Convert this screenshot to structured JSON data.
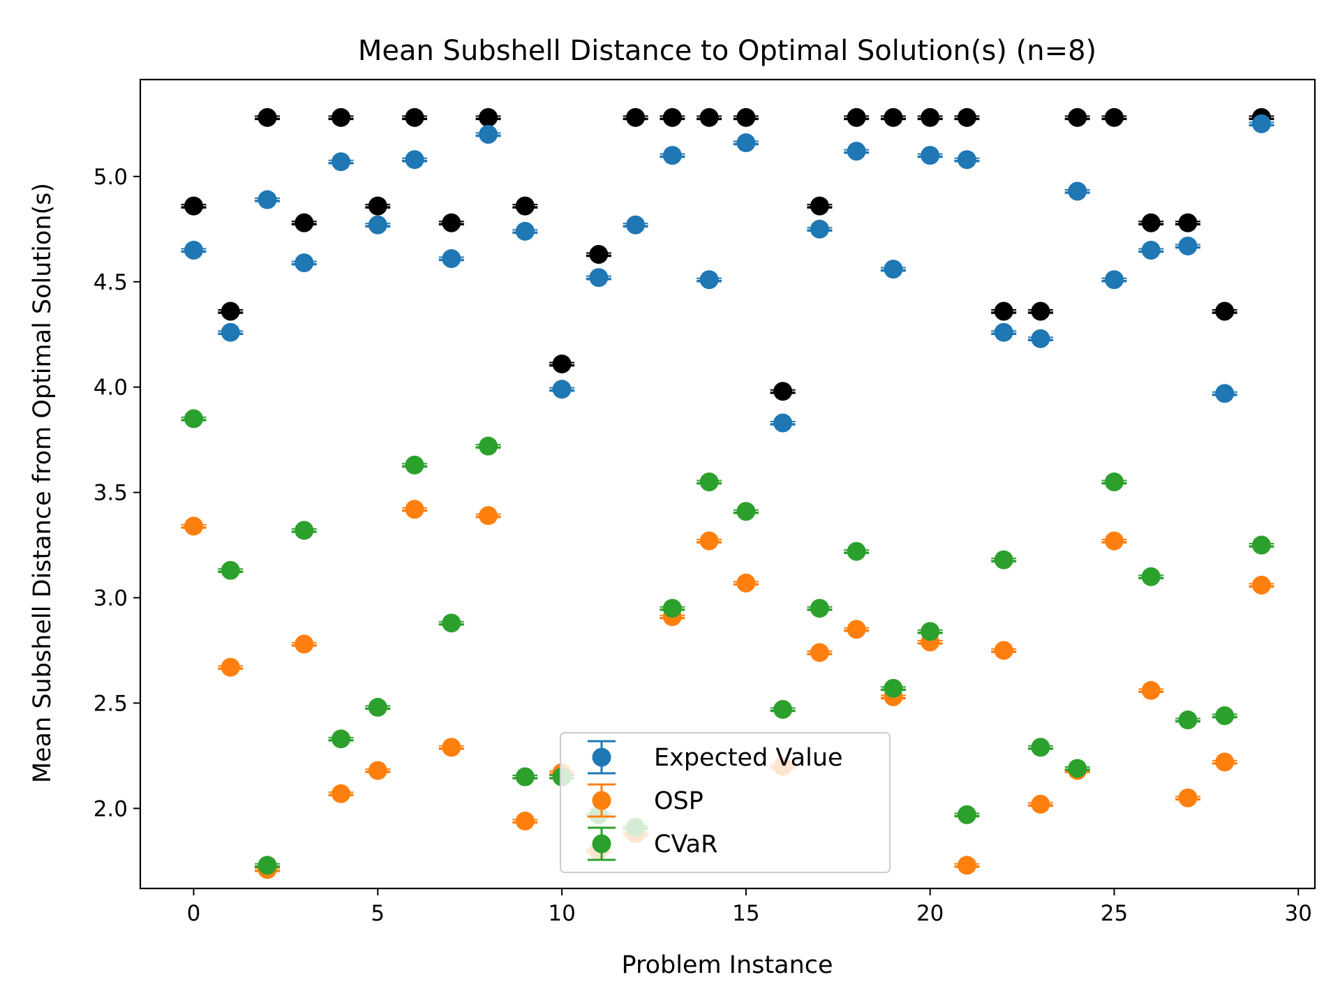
{
  "chart_data": {
    "type": "scatter",
    "title": "Mean Subshell Distance to Optimal Solution(s) (n=8)",
    "xlabel": "Problem Instance",
    "ylabel": "Mean Subshell Distance from Optimal Solution(s)",
    "xlim": [
      -1.45,
      30.45
    ],
    "ylim": [
      1.62,
      5.46
    ],
    "xticks": [
      0,
      5,
      10,
      15,
      20,
      25,
      30
    ],
    "yticks": [
      2.0,
      2.5,
      3.0,
      3.5,
      4.0,
      4.5,
      5.0
    ],
    "grid": false,
    "legend_position": "bottom-center",
    "x": [
      0,
      1,
      2,
      3,
      4,
      5,
      6,
      7,
      8,
      9,
      10,
      11,
      12,
      13,
      14,
      15,
      16,
      17,
      18,
      19,
      20,
      21,
      22,
      23,
      24,
      25,
      26,
      27,
      28,
      29
    ],
    "series": [
      {
        "name": "",
        "legend": false,
        "color": "#000000",
        "values": [
          4.86,
          4.36,
          5.28,
          4.78,
          5.28,
          4.86,
          5.28,
          4.78,
          5.28,
          4.86,
          4.11,
          4.63,
          5.28,
          5.28,
          5.28,
          5.28,
          3.98,
          4.86,
          5.28,
          5.28,
          5.28,
          5.28,
          4.36,
          4.36,
          5.28,
          5.28,
          4.78,
          4.78,
          4.36,
          5.28
        ]
      },
      {
        "name": "Expected Value",
        "legend": true,
        "color": "#1f77b4",
        "values": [
          4.65,
          4.26,
          4.89,
          4.59,
          5.07,
          4.77,
          5.08,
          4.61,
          5.2,
          4.74,
          3.99,
          4.52,
          4.77,
          5.1,
          4.51,
          5.16,
          3.83,
          4.75,
          5.12,
          4.56,
          5.1,
          5.08,
          4.26,
          4.23,
          4.93,
          4.51,
          4.65,
          4.67,
          3.97,
          5.25
        ]
      },
      {
        "name": "OSP",
        "legend": true,
        "color": "#ff7f0e",
        "values": [
          3.34,
          2.67,
          1.71,
          2.78,
          2.07,
          2.18,
          3.42,
          2.29,
          3.39,
          1.94,
          2.17,
          1.8,
          1.88,
          2.91,
          3.27,
          3.07,
          2.2,
          2.74,
          2.85,
          2.53,
          2.79,
          1.73,
          2.75,
          2.02,
          2.18,
          3.27,
          2.56,
          2.05,
          2.22,
          3.06
        ]
      },
      {
        "name": "CVaR",
        "legend": true,
        "color": "#2ca02c",
        "values": [
          3.85,
          3.13,
          1.73,
          3.32,
          2.33,
          2.48,
          3.63,
          2.88,
          3.72,
          2.15,
          2.15,
          1.97,
          1.91,
          2.95,
          3.55,
          3.41,
          2.47,
          2.95,
          3.22,
          2.57,
          2.84,
          1.97,
          3.18,
          2.29,
          2.19,
          3.55,
          3.1,
          2.42,
          2.44,
          3.25
        ]
      }
    ]
  }
}
